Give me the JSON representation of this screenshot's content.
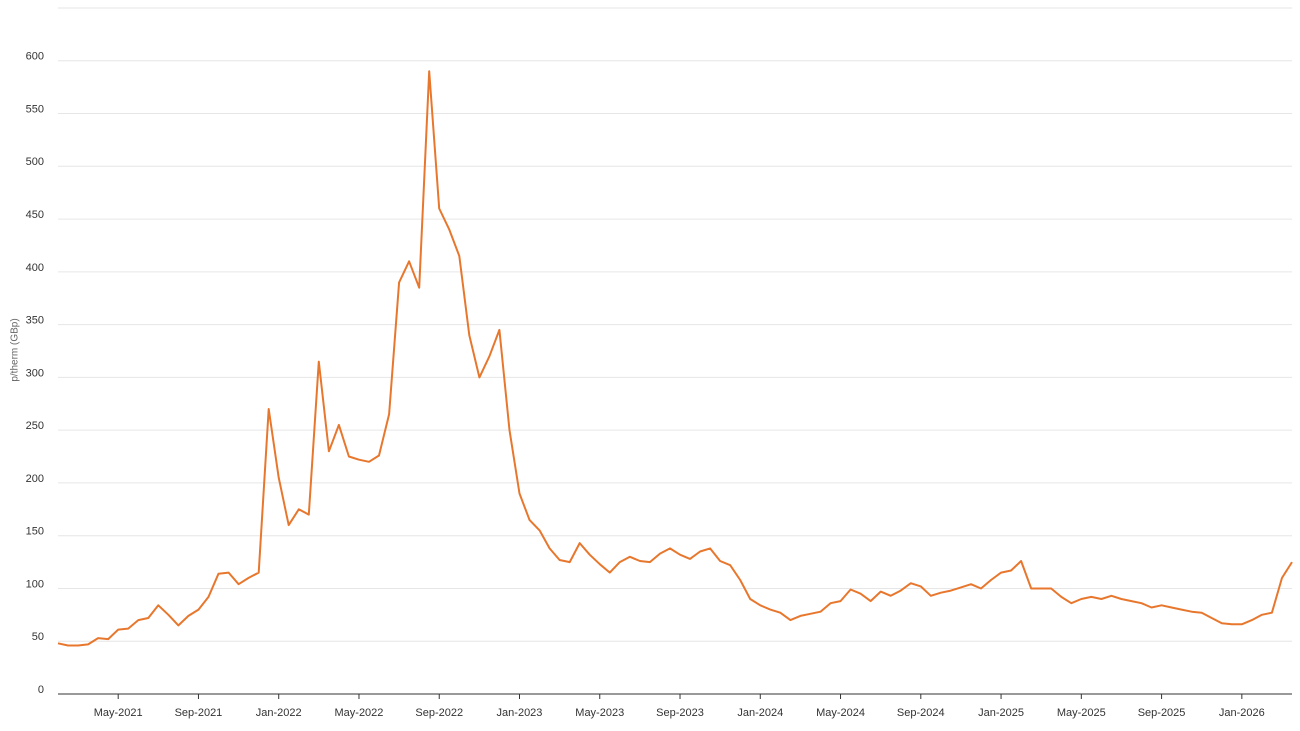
{
  "chart_data": {
    "type": "line",
    "y_label": "p/therm (GBp)",
    "categories": [
      null,
      null,
      null,
      null,
      null,
      null,
      "May-2021",
      null,
      null,
      null,
      null,
      null,
      null,
      null,
      "Sep-2021",
      null,
      null,
      null,
      null,
      null,
      null,
      null,
      "Jan-2022",
      null,
      null,
      null,
      null,
      null,
      null,
      null,
      "May-2022",
      null,
      null,
      null,
      null,
      null,
      null,
      null,
      "Sep-2022",
      null,
      null,
      null,
      null,
      null,
      null,
      null,
      "Jan-2023",
      null,
      null,
      null,
      null,
      null,
      null,
      null,
      "May-2023",
      null,
      null,
      null,
      null,
      null,
      null,
      null,
      "Sep-2023",
      null,
      null,
      null,
      null,
      null,
      null,
      null,
      "Jan-2024",
      null,
      null,
      null,
      null,
      null,
      null,
      null,
      "May-2024",
      null,
      null,
      null,
      null,
      null,
      null,
      null,
      "Sep-2024",
      null,
      null,
      null,
      null,
      null,
      null,
      null,
      "Jan-2025",
      null,
      null,
      null,
      null,
      null,
      null,
      null,
      "May-2025",
      null,
      null,
      null,
      null,
      null,
      null,
      null,
      "Sep-2025",
      null,
      null,
      null,
      null,
      null,
      null,
      null,
      "Jan-2026",
      null,
      null,
      null,
      null,
      null
    ],
    "values": [
      48,
      46,
      46,
      47,
      53,
      52,
      61,
      62,
      70,
      72,
      84,
      75,
      65,
      74,
      80,
      92,
      114,
      115,
      104,
      110,
      115,
      270,
      205,
      160,
      175,
      170,
      315,
      230,
      255,
      225,
      222,
      220,
      226,
      265,
      390,
      410,
      385,
      590,
      460,
      440,
      415,
      340,
      300,
      320,
      345,
      250,
      190,
      165,
      155,
      138,
      127,
      125,
      143,
      132,
      123,
      115,
      125,
      130,
      126,
      125,
      133,
      138,
      132,
      128,
      135,
      138,
      126,
      122,
      108,
      90,
      84,
      80,
      77,
      70,
      74,
      76,
      78,
      86,
      88,
      99,
      95,
      88,
      97,
      93,
      98,
      105,
      102,
      93,
      96,
      98,
      101,
      104,
      100,
      108,
      115,
      117,
      126,
      100,
      100,
      100,
      92,
      86,
      90,
      92,
      90,
      93,
      90,
      88,
      86,
      82,
      84,
      82,
      80,
      78,
      77,
      72,
      67,
      66,
      66,
      70,
      75,
      77,
      110,
      125
    ],
    "color": "#e8772e",
    "ylim": [
      0,
      650
    ],
    "yticks": [
      0,
      50,
      100,
      150,
      200,
      250,
      300,
      350,
      400,
      450,
      500,
      550,
      600
    ],
    "grid": true
  }
}
